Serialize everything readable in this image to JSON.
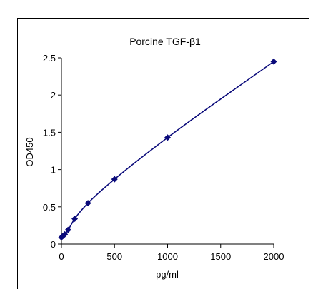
{
  "chart_data": {
    "type": "scatter",
    "title": "Porcine   TGF-β1",
    "xlabel": "pg/ml",
    "ylabel": "OD450",
    "xlim": [
      0,
      2000
    ],
    "ylim": [
      0,
      2.5
    ],
    "x_ticks": [
      0,
      500,
      1000,
      1500,
      2000
    ],
    "y_ticks": [
      0,
      0.5,
      1,
      1.5,
      2,
      2.5
    ],
    "x_tick_labels": [
      "0",
      "500",
      "1000",
      "1500",
      "2000"
    ],
    "y_tick_labels": [
      "0",
      "0.5",
      "1",
      "1.5",
      "2",
      "2.5"
    ],
    "grid": false,
    "legend": "none",
    "marker": "diamond",
    "fit_line": true,
    "colors": {
      "series": "#0A0A7A",
      "axis": "#000000"
    },
    "series": [
      {
        "x": [
          0,
          15.6,
          31.25,
          62.5,
          125,
          250,
          500,
          1000,
          2000
        ],
        "y": [
          0.09,
          0.11,
          0.13,
          0.19,
          0.34,
          0.55,
          0.87,
          1.43,
          2.45
        ]
      }
    ]
  }
}
